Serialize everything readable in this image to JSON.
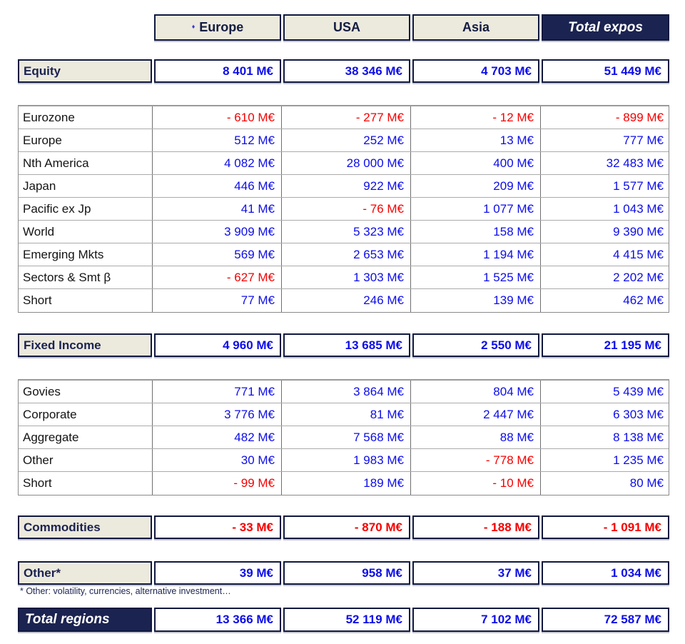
{
  "colors": {
    "navy": "#1b2350",
    "beige": "#ece9dd",
    "positive_blue": "#0d0de8",
    "negative_red": "#f50000",
    "grid_gray": "#8a8a8a"
  },
  "header": {
    "bullet": "♦",
    "columns": [
      "Europe",
      "USA",
      "Asia"
    ],
    "total_label": "Total expos"
  },
  "sections": {
    "equity": {
      "label": "Equity",
      "values": [
        "8 401 M€",
        "38 346 M€",
        "4 703 M€",
        "51 449 M€"
      ],
      "rows": [
        {
          "label": "Eurozone",
          "values": [
            "- 610 M€",
            "- 277 M€",
            "- 12 M€",
            "- 899 M€"
          ]
        },
        {
          "label": "Europe",
          "values": [
            "512 M€",
            "252 M€",
            "13 M€",
            "777 M€"
          ]
        },
        {
          "label": "Nth America",
          "values": [
            "4 082 M€",
            "28 000 M€",
            "400 M€",
            "32 483 M€"
          ]
        },
        {
          "label": "Japan",
          "values": [
            "446 M€",
            "922 M€",
            "209 M€",
            "1 577 M€"
          ]
        },
        {
          "label": "Pacific ex Jp",
          "values": [
            "41 M€",
            "- 76 M€",
            "1 077 M€",
            "1 043 M€"
          ]
        },
        {
          "label": "World",
          "values": [
            "3 909 M€",
            "5 323 M€",
            "158 M€",
            "9 390 M€"
          ]
        },
        {
          "label": "Emerging Mkts",
          "values": [
            "569 M€",
            "2 653 M€",
            "1 194 M€",
            "4 415 M€"
          ]
        },
        {
          "label": "Sectors & Smt β",
          "values": [
            "- 627 M€",
            "1 303 M€",
            "1 525 M€",
            "2 202 M€"
          ]
        },
        {
          "label": "Short",
          "values": [
            "77 M€",
            "246 M€",
            "139 M€",
            "462 M€"
          ]
        }
      ]
    },
    "fixed_income": {
      "label": "Fixed Income",
      "values": [
        "4 960 M€",
        "13 685 M€",
        "2 550 M€",
        "21 195 M€"
      ],
      "rows": [
        {
          "label": "Govies",
          "values": [
            "771 M€",
            "3 864 M€",
            "804 M€",
            "5 439 M€"
          ]
        },
        {
          "label": "Corporate",
          "values": [
            "3 776 M€",
            "81 M€",
            "2 447 M€",
            "6 303 M€"
          ]
        },
        {
          "label": "Aggregate",
          "values": [
            "482 M€",
            "7 568 M€",
            "88 M€",
            "8 138 M€"
          ]
        },
        {
          "label": "Other",
          "values": [
            "30 M€",
            "1 983 M€",
            "- 778 M€",
            "1 235 M€"
          ]
        },
        {
          "label": "Short",
          "values": [
            "- 99 M€",
            "189 M€",
            "- 10 M€",
            "80 M€"
          ]
        }
      ]
    },
    "commodities": {
      "label": "Commodities",
      "values": [
        "- 33 M€",
        "- 870 M€",
        "- 188 M€",
        "- 1 091 M€"
      ]
    },
    "other": {
      "label": "Other*",
      "values": [
        "39 M€",
        "958 M€",
        "37 M€",
        "1 034 M€"
      ]
    }
  },
  "footnote": "* Other: volatility, currencies, alternative investment…",
  "total": {
    "label": "Total regions",
    "values": [
      "13 366 M€",
      "52 119 M€",
      "7 102 M€",
      "72 587 M€"
    ]
  }
}
